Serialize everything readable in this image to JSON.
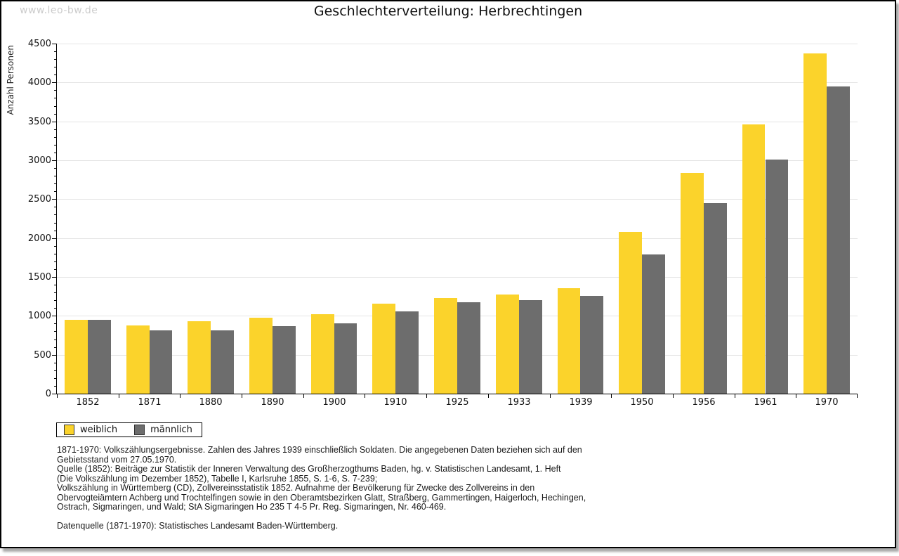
{
  "page": {
    "watermark": "www.leo-bw.de",
    "title": "Geschlechterverteilung: Herbrechtingen"
  },
  "chart_data": {
    "type": "bar",
    "title": "Geschlechterverteilung: Herbrechtingen",
    "xlabel": "",
    "ylabel": "Anzahl Personen",
    "categories": [
      "1852",
      "1871",
      "1880",
      "1890",
      "1900",
      "1910",
      "1925",
      "1933",
      "1939",
      "1950",
      "1956",
      "1961",
      "1970"
    ],
    "series": [
      {
        "name": "weiblich",
        "color": "#FBD32B",
        "values": [
          950,
          880,
          935,
          975,
          1025,
          1155,
          1225,
          1275,
          1355,
          2075,
          2835,
          3460,
          4370
        ]
      },
      {
        "name": "männlich",
        "color": "#6D6D6D",
        "values": [
          950,
          810,
          815,
          865,
          900,
          1060,
          1175,
          1205,
          1255,
          1790,
          2450,
          3005,
          3950
        ]
      }
    ],
    "ylim": [
      0,
      4500
    ],
    "ytick_step": 500,
    "y_minor_step": 100,
    "grid": "horizontal-major",
    "legend_position": "bottom-left"
  },
  "footer": {
    "lines": [
      "1871-1970: Volkszählungsergebnisse. Zahlen des Jahres 1939 einschließlich Soldaten. Die angegebenen Daten beziehen sich auf den",
      "Gebietsstand vom 27.05.1970.",
      "Quelle (1852): Beiträge zur Statistik der Inneren Verwaltung des Großherzogthums Baden, hg. v. Statistischen Landesamt, 1. Heft",
      "(Die Volkszählung im Dezember 1852), Tabelle I, Karlsruhe 1855, S. 1-6, S. 7-239;",
      "Volkszählung in Württemberg (CD), Zollvereinsstatistik 1852. Aufnahme der Bevölkerung für Zwecke des Zollvereins in den",
      "Obervogteiämtern Achberg und Trochtelfingen sowie in den Oberamtsbezirken Glatt, Straßberg, Gammertingen, Haigerloch, Hechingen,",
      "Ostrach, Sigmaringen, und Wald; StA Sigmaringen Ho 235 T 4-5 Pr. Reg. Sigmaringen, Nr. 460-469.",
      "",
      "Datenquelle (1871-1970): Statistisches Landesamt Baden-Württemberg."
    ]
  }
}
